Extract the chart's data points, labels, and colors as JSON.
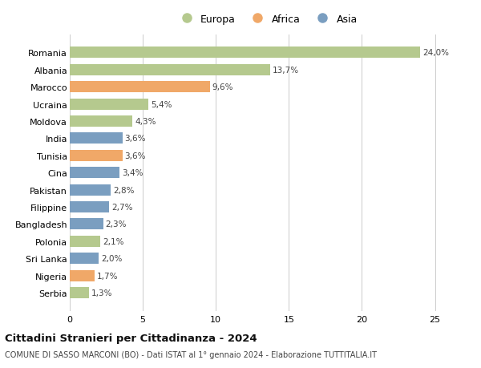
{
  "categories": [
    "Romania",
    "Albania",
    "Marocco",
    "Ucraina",
    "Moldova",
    "India",
    "Tunisia",
    "Cina",
    "Pakistan",
    "Filippine",
    "Bangladesh",
    "Polonia",
    "Sri Lanka",
    "Nigeria",
    "Serbia"
  ],
  "values": [
    24.0,
    13.7,
    9.6,
    5.4,
    4.3,
    3.6,
    3.6,
    3.4,
    2.8,
    2.7,
    2.3,
    2.1,
    2.0,
    1.7,
    1.3
  ],
  "continent": [
    "Europa",
    "Europa",
    "Africa",
    "Europa",
    "Europa",
    "Asia",
    "Africa",
    "Asia",
    "Asia",
    "Asia",
    "Asia",
    "Europa",
    "Asia",
    "Africa",
    "Europa"
  ],
  "colors": {
    "Europa": "#b5c98e",
    "Africa": "#f0a868",
    "Asia": "#7a9ec0"
  },
  "xlim": [
    0,
    27
  ],
  "xticks": [
    0,
    5,
    10,
    15,
    20,
    25
  ],
  "title_bold": "Cittadini Stranieri per Cittadinanza - 2024",
  "subtitle": "COMUNE DI SASSO MARCONI (BO) - Dati ISTAT al 1° gennaio 2024 - Elaborazione TUTTITALIA.IT",
  "background_color": "#ffffff",
  "grid_color": "#cccccc"
}
